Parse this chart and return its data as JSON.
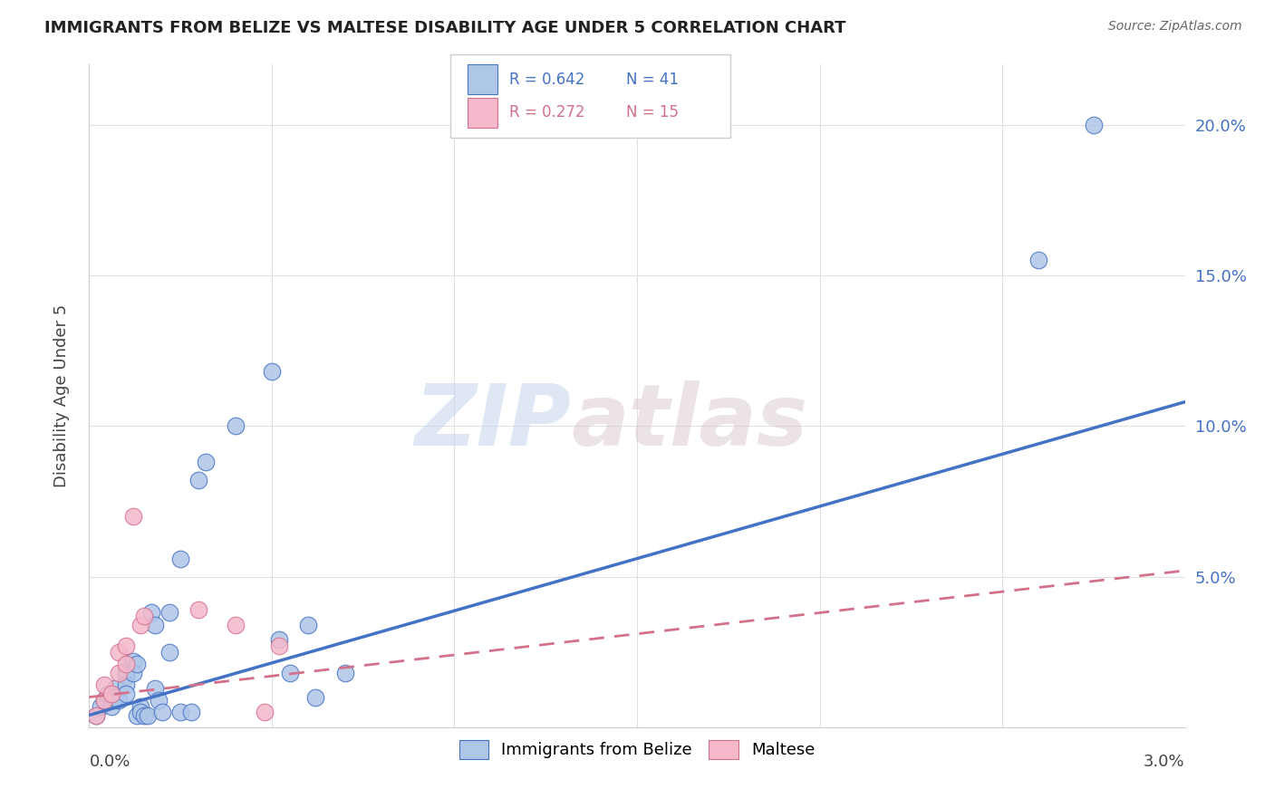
{
  "title": "IMMIGRANTS FROM BELIZE VS MALTESE DISABILITY AGE UNDER 5 CORRELATION CHART",
  "source": "Source: ZipAtlas.com",
  "ylabel": "Disability Age Under 5",
  "legend_blue_label": "Immigrants from Belize",
  "legend_pink_label": "Maltese",
  "watermark_zip": "ZIP",
  "watermark_atlas": "atlas",
  "blue_color": "#aec6e8",
  "blue_line_color": "#4472c4",
  "pink_color": "#f4b8ca",
  "pink_line_color": "#d4708a",
  "blue_scatter": [
    [
      0.0002,
      0.004
    ],
    [
      0.0003,
      0.007
    ],
    [
      0.0004,
      0.009
    ],
    [
      0.0005,
      0.011
    ],
    [
      0.0006,
      0.007
    ],
    [
      0.0007,
      0.013
    ],
    [
      0.0007,
      0.01
    ],
    [
      0.0008,
      0.009
    ],
    [
      0.001,
      0.017
    ],
    [
      0.001,
      0.019
    ],
    [
      0.001,
      0.014
    ],
    [
      0.001,
      0.011
    ],
    [
      0.0012,
      0.022
    ],
    [
      0.0012,
      0.018
    ],
    [
      0.0013,
      0.021
    ],
    [
      0.0013,
      0.004
    ],
    [
      0.0014,
      0.007
    ],
    [
      0.0014,
      0.005
    ],
    [
      0.0015,
      0.004
    ],
    [
      0.0016,
      0.004
    ],
    [
      0.0017,
      0.038
    ],
    [
      0.0018,
      0.034
    ],
    [
      0.0018,
      0.013
    ],
    [
      0.0019,
      0.009
    ],
    [
      0.002,
      0.005
    ],
    [
      0.0022,
      0.025
    ],
    [
      0.0022,
      0.038
    ],
    [
      0.0025,
      0.056
    ],
    [
      0.0025,
      0.005
    ],
    [
      0.0028,
      0.005
    ],
    [
      0.003,
      0.082
    ],
    [
      0.0032,
      0.088
    ],
    [
      0.004,
      0.1
    ],
    [
      0.005,
      0.118
    ],
    [
      0.0052,
      0.029
    ],
    [
      0.0055,
      0.018
    ],
    [
      0.006,
      0.034
    ],
    [
      0.0062,
      0.01
    ],
    [
      0.007,
      0.018
    ],
    [
      0.026,
      0.155
    ],
    [
      0.0275,
      0.2
    ]
  ],
  "pink_scatter": [
    [
      0.0002,
      0.004
    ],
    [
      0.0004,
      0.009
    ],
    [
      0.0004,
      0.014
    ],
    [
      0.0006,
      0.011
    ],
    [
      0.0008,
      0.018
    ],
    [
      0.0008,
      0.025
    ],
    [
      0.001,
      0.027
    ],
    [
      0.001,
      0.021
    ],
    [
      0.0012,
      0.07
    ],
    [
      0.0014,
      0.034
    ],
    [
      0.0015,
      0.037
    ],
    [
      0.003,
      0.039
    ],
    [
      0.004,
      0.034
    ],
    [
      0.0048,
      0.005
    ],
    [
      0.0052,
      0.027
    ]
  ],
  "xlim": [
    0,
    0.03
  ],
  "ylim": [
    0,
    0.22
  ],
  "x_ticks": [
    0,
    0.005,
    0.01,
    0.015,
    0.02,
    0.025,
    0.03
  ],
  "y_ticks": [
    0.0,
    0.05,
    0.1,
    0.15,
    0.2
  ],
  "y_tick_labels": [
    "",
    "5.0%",
    "10.0%",
    "15.0%",
    "20.0%"
  ],
  "blue_line_x": [
    0.0,
    0.03
  ],
  "blue_line_y": [
    0.004,
    0.108
  ],
  "pink_line_x": [
    0.0,
    0.03
  ],
  "pink_line_y": [
    0.01,
    0.052
  ],
  "figsize": [
    14.06,
    8.92
  ],
  "dpi": 100
}
